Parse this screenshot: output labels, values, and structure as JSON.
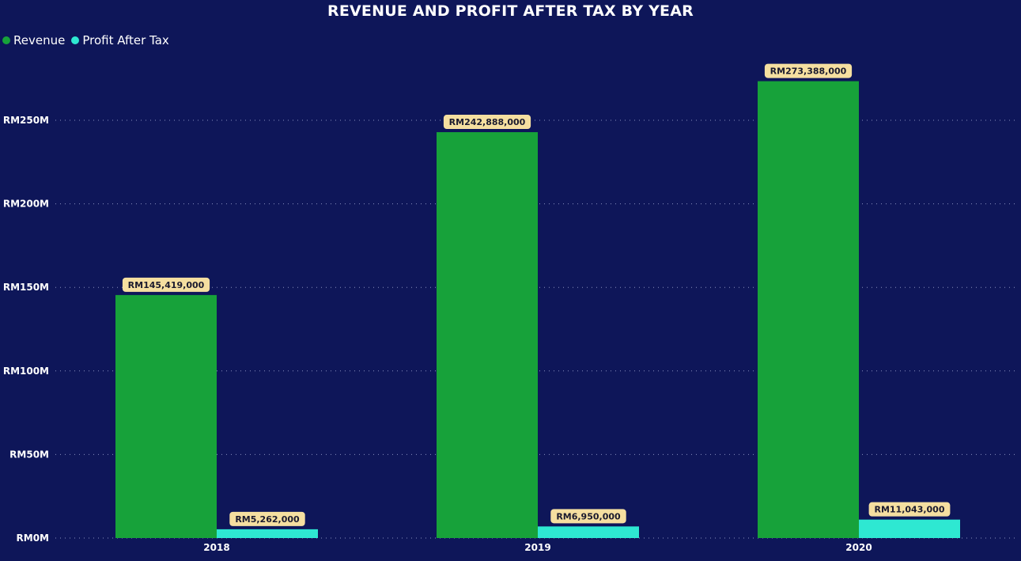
{
  "chart_data": {
    "type": "bar",
    "title": "REVENUE AND PROFIT AFTER TAX BY YEAR",
    "categories": [
      "2018",
      "2019",
      "2020"
    ],
    "series": [
      {
        "name": "Revenue",
        "color": "#17a23a",
        "values": [
          145419000,
          242888000,
          273388000
        ],
        "labels": [
          "RM145,419,000",
          "RM242,888,000",
          "RM273,388,000"
        ]
      },
      {
        "name": "Profit After Tax",
        "color": "#2ee8d2",
        "values": [
          5262000,
          6950000,
          11043000
        ],
        "labels": [
          "RM5,262,000",
          "RM6,950,000",
          "RM11,043,000"
        ]
      }
    ],
    "ylim": [
      0,
      290000000
    ],
    "yticks": [
      {
        "value": 0,
        "label": "RM0M"
      },
      {
        "value": 50000000,
        "label": "RM50M"
      },
      {
        "value": 100000000,
        "label": "RM100M"
      },
      {
        "value": 150000000,
        "label": "RM150M"
      },
      {
        "value": 200000000,
        "label": "RM200M"
      },
      {
        "value": 250000000,
        "label": "RM250M"
      }
    ],
    "xlabel": "",
    "ylabel": "",
    "grid": true,
    "legend_position": "top-left",
    "data_label_bg": "#f5dfa0",
    "gridline_color": "#8a91c0"
  }
}
